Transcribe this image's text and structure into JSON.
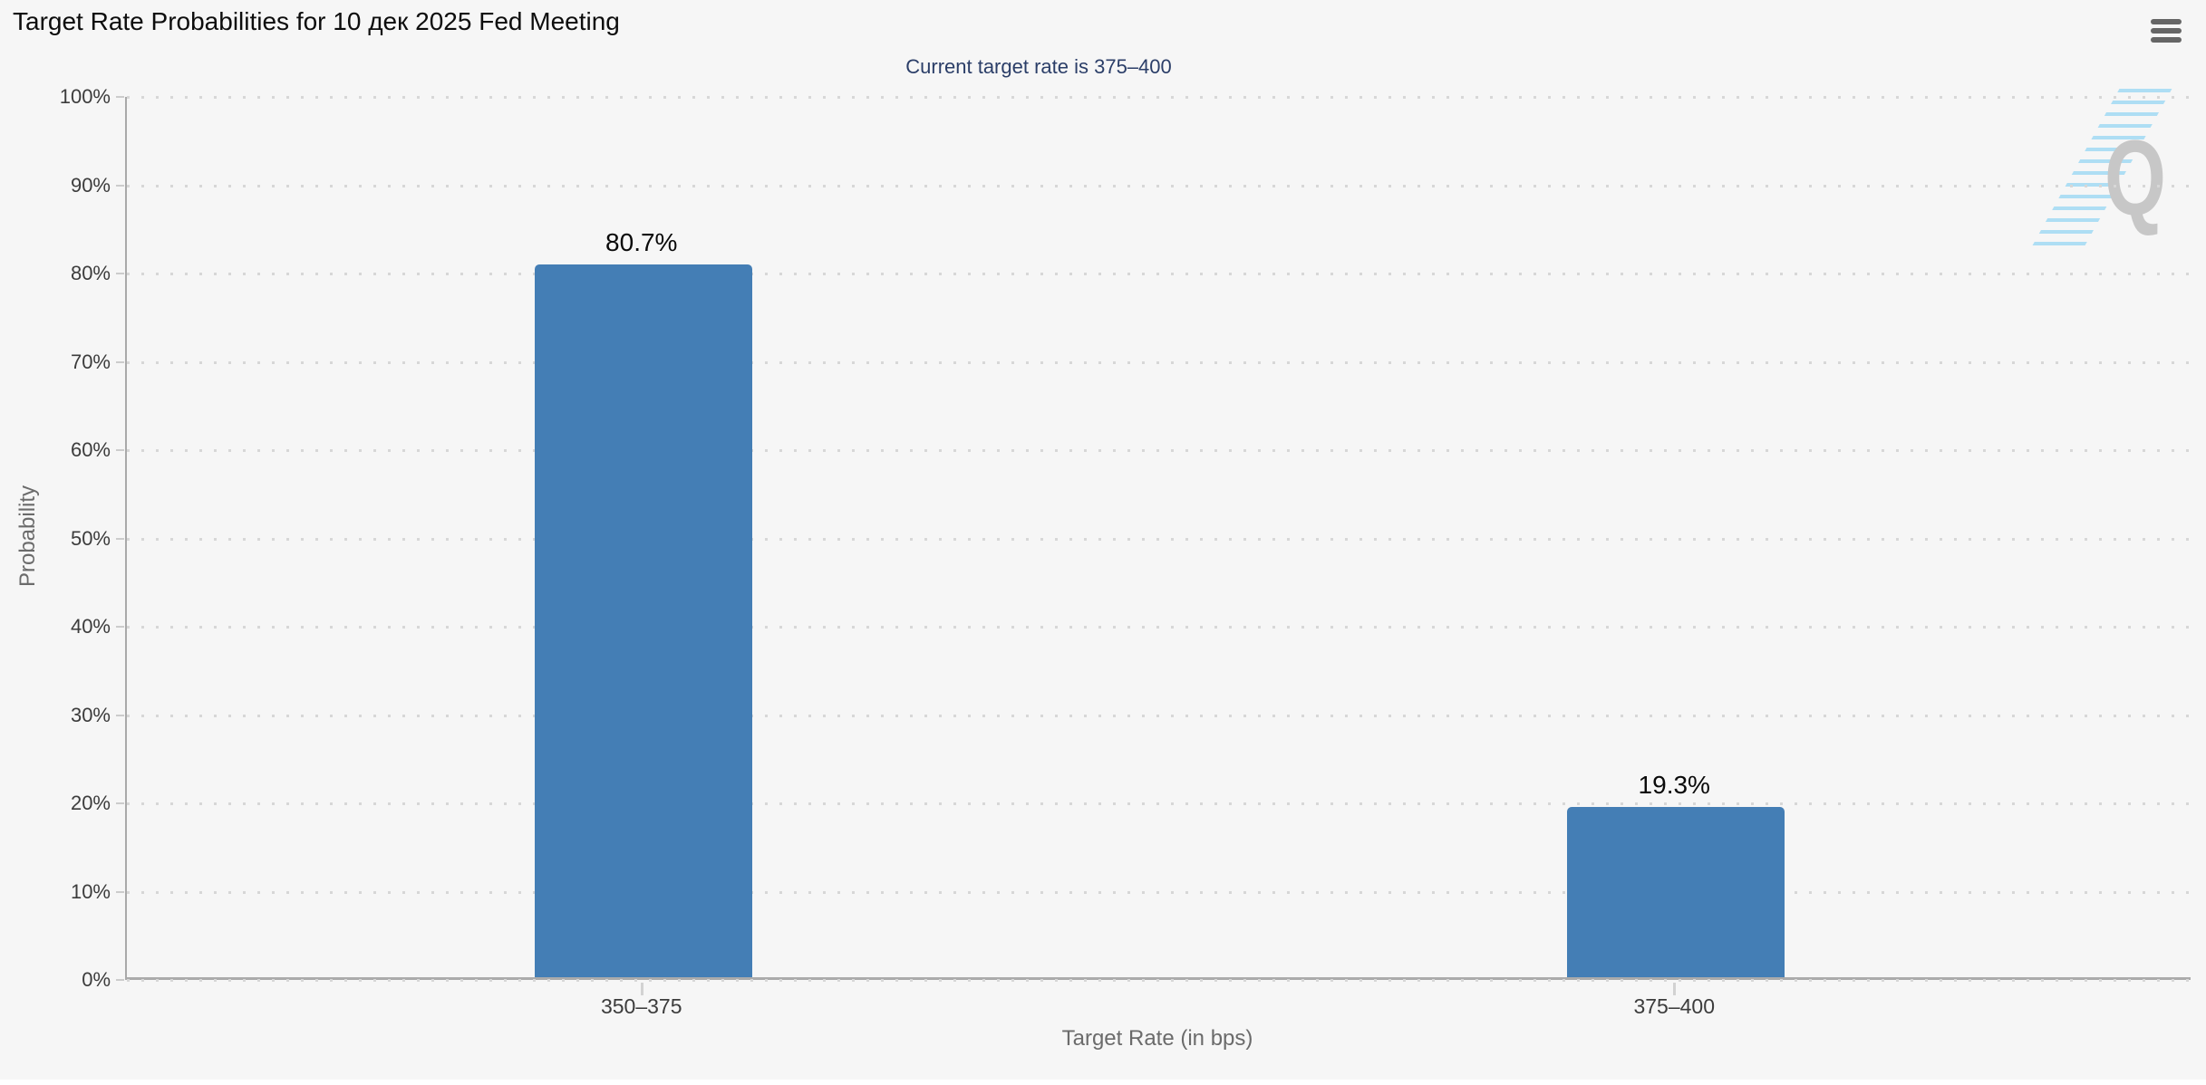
{
  "header": {
    "title": "Target Rate Probabilities for 10 дек 2025 Fed Meeting"
  },
  "menu": {
    "icon": "hamburger-icon"
  },
  "watermark": {
    "letter": "Q"
  },
  "chart_data": {
    "type": "bar",
    "title": "Current target rate is 375–400",
    "categories": [
      "350–375",
      "375–400"
    ],
    "values": [
      80.7,
      19.3
    ],
    "value_labels": [
      "80.7%",
      "19.3%"
    ],
    "xlabel": "Target Rate (in bps)",
    "ylabel": "Probability",
    "ylim": [
      0,
      100
    ],
    "ytick_step": 10,
    "yticks": [
      "0%",
      "10%",
      "20%",
      "30%",
      "40%",
      "50%",
      "60%",
      "70%",
      "80%",
      "90%",
      "100%"
    ],
    "grid": "dotted-horizontal",
    "legend": "none",
    "bar_color": "#447eb5",
    "subtitle_color": "#2b3e68"
  }
}
